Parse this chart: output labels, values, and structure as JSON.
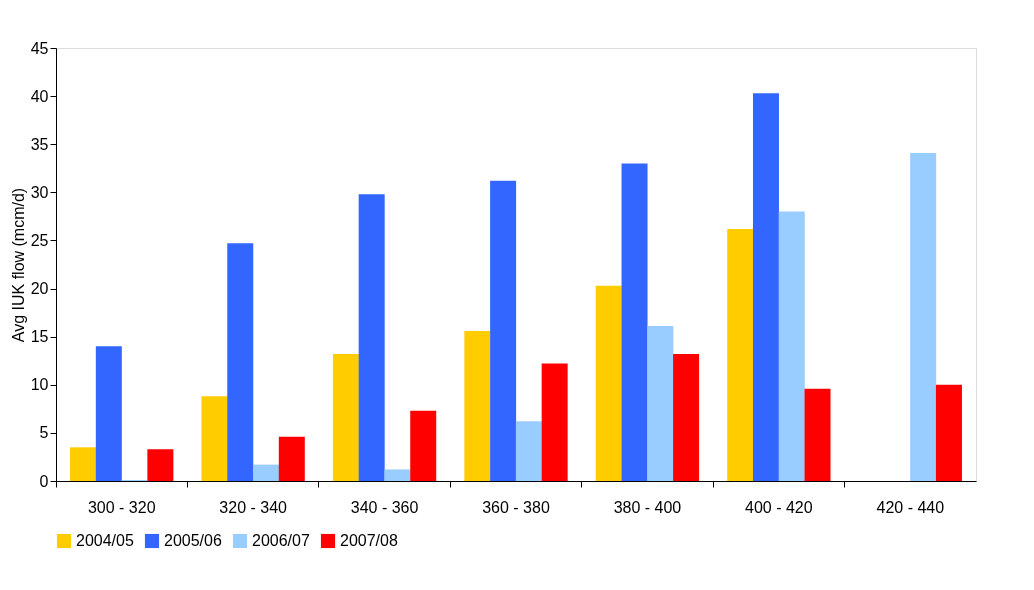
{
  "chart_data": {
    "type": "bar",
    "ylabel": "Avg IUK flow (mcm/d)",
    "categories": [
      "300 - 320",
      "320 - 340",
      "340 - 360",
      "360 - 380",
      "380 - 400",
      "400 - 420",
      "420 - 440"
    ],
    "series": [
      {
        "name": "2004/05",
        "color": "#ffcc00",
        "values": [
          3.5,
          8.8,
          13.2,
          15.6,
          20.3,
          26.2,
          null
        ]
      },
      {
        "name": "2005/06",
        "color": "#3366ff",
        "values": [
          14.0,
          24.7,
          29.8,
          31.2,
          33.0,
          40.3,
          null
        ]
      },
      {
        "name": "2006/07",
        "color": "#99ccff",
        "values": [
          0.1,
          1.7,
          1.2,
          6.2,
          16.1,
          28.0,
          34.1
        ]
      },
      {
        "name": "2007/08",
        "color": "#ff0000",
        "values": [
          3.3,
          4.6,
          7.3,
          12.2,
          13.2,
          9.6,
          10.0
        ]
      }
    ],
    "ylim": [
      0,
      45
    ],
    "yticks": [
      0,
      5,
      10,
      15,
      20,
      25,
      30,
      35,
      40,
      45
    ],
    "grid": false,
    "legend": "bottom"
  }
}
